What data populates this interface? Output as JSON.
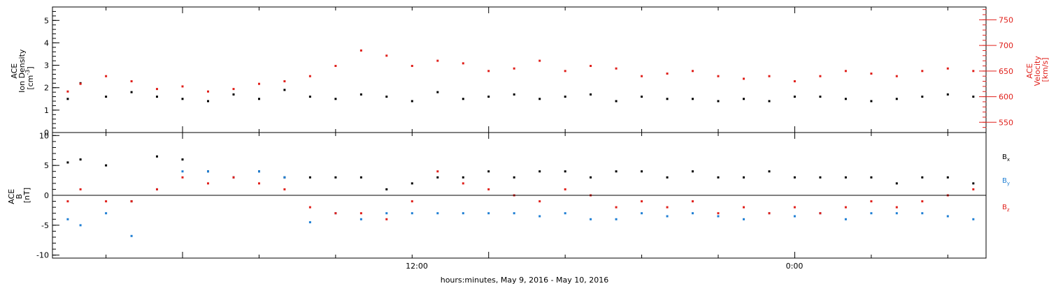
{
  "colors": {
    "black": "#000000",
    "red": "#e0201b",
    "blue": "#1f7fd4"
  },
  "x_axis": {
    "label": "hours:minutes, May  9, 2016 - May 10, 2016",
    "tick_labels": [
      "12:00",
      "0:00"
    ]
  },
  "chart_data": [
    {
      "type": "scatter",
      "title": "",
      "ylabel": "ACE\nIon Density\n[cm^-3]",
      "ylabel_lines": [
        "ACE",
        "Ion Density",
        "[cm",
        "-3",
        "]"
      ],
      "ylim": [
        0,
        5.6
      ],
      "yticks": [
        0,
        1,
        2,
        3,
        4,
        5
      ],
      "y2label": "ACE\nVelocity\n[km/s]",
      "y2label_lines": [
        "ACE",
        "Velocity",
        "[km/s]"
      ],
      "y2lim": [
        530,
        775
      ],
      "y2ticks": [
        550,
        600,
        650,
        700,
        750
      ],
      "xlim_hours": [
        -5.1,
        31.5
      ],
      "series": [
        {
          "name": "Ion Density",
          "axis": "left",
          "color": "black",
          "x": [
            -4.5,
            -4,
            -3,
            -2,
            -1,
            0,
            1,
            2,
            3,
            4,
            5,
            6,
            7,
            8,
            9,
            10,
            11,
            12,
            13,
            14,
            15,
            16,
            17,
            18,
            19,
            20,
            21,
            22,
            23,
            24,
            25,
            26,
            27,
            28,
            29,
            30,
            31
          ],
          "y": [
            1.5,
            2.2,
            1.6,
            1.8,
            1.6,
            1.5,
            1.4,
            1.7,
            1.5,
            1.9,
            1.6,
            1.5,
            1.7,
            1.6,
            1.4,
            1.8,
            1.5,
            1.6,
            1.7,
            1.5,
            1.6,
            1.7,
            1.4,
            1.6,
            1.5,
            1.5,
            1.4,
            1.5,
            1.4,
            1.6,
            1.6,
            1.5,
            1.4,
            1.5,
            1.6,
            1.7,
            1.6
          ]
        },
        {
          "name": "Velocity",
          "axis": "right",
          "color": "red",
          "x": [
            -4.5,
            -4,
            -3,
            -2,
            -1,
            0,
            1,
            2,
            3,
            4,
            5,
            6,
            7,
            8,
            9,
            10,
            11,
            12,
            13,
            14,
            15,
            16,
            17,
            18,
            19,
            20,
            21,
            22,
            23,
            24,
            25,
            26,
            27,
            28,
            29,
            30,
            31
          ],
          "y": [
            610,
            625,
            640,
            630,
            615,
            620,
            610,
            615,
            625,
            630,
            640,
            660,
            690,
            680,
            660,
            670,
            665,
            650,
            655,
            670,
            650,
            660,
            655,
            640,
            645,
            650,
            640,
            635,
            640,
            630,
            640,
            650,
            645,
            640,
            650,
            655,
            650
          ]
        }
      ]
    },
    {
      "type": "scatter",
      "title": "",
      "ylabel": "ACE\nB\n[nT]",
      "ylabel_lines": [
        "ACE",
        "B",
        "[nT]"
      ],
      "ylim": [
        -10.5,
        10.5
      ],
      "yticks": [
        -10,
        -5,
        0,
        5,
        10
      ],
      "xlim_hours": [
        -5.1,
        31.5
      ],
      "zero_line": true,
      "series": [
        {
          "name": "Bx",
          "base": "B",
          "sub": "x",
          "color": "black",
          "x": [
            -4.5,
            -4,
            -3,
            -2,
            -1,
            0,
            1,
            2,
            3,
            4,
            5,
            6,
            7,
            8,
            9,
            10,
            11,
            12,
            13,
            14,
            15,
            16,
            17,
            18,
            19,
            20,
            21,
            22,
            23,
            24,
            25,
            26,
            27,
            28,
            29,
            30,
            31
          ],
          "y": [
            5.5,
            6,
            5,
            -1,
            6.5,
            6,
            4,
            3,
            4,
            3,
            3,
            3,
            3,
            1,
            2,
            3,
            3,
            4,
            3,
            4,
            4,
            3,
            4,
            4,
            3,
            4,
            3,
            3,
            4,
            3,
            3,
            3,
            3,
            2,
            3,
            3,
            2
          ]
        },
        {
          "name": "By",
          "base": "B",
          "sub": "y",
          "color": "blue",
          "x": [
            -4.5,
            -4,
            -3,
            -2,
            -1,
            0,
            1,
            2,
            3,
            4,
            5,
            6,
            7,
            8,
            9,
            10,
            11,
            12,
            13,
            14,
            15,
            16,
            17,
            18,
            19,
            20,
            21,
            22,
            23,
            24,
            25,
            26,
            27,
            28,
            29,
            30,
            31
          ],
          "y": [
            -4,
            -5,
            -3,
            -6.8,
            1,
            4,
            4,
            3,
            4,
            3,
            -4.5,
            -3,
            -4,
            -3,
            -3,
            -3,
            -3,
            -3,
            -3,
            -3.5,
            -3,
            -4,
            -4,
            -3,
            -3.5,
            -3,
            -3.5,
            -4,
            -3,
            -3.5,
            -3,
            -4,
            -3,
            -3,
            -3,
            -3.5,
            -4
          ]
        },
        {
          "name": "Bz",
          "base": "B",
          "sub": "z",
          "color": "red",
          "x": [
            -4.5,
            -4,
            -3,
            -2,
            -1,
            0,
            1,
            2,
            3,
            4,
            5,
            6,
            7,
            8,
            9,
            10,
            11,
            12,
            13,
            14,
            15,
            16,
            17,
            18,
            19,
            20,
            21,
            22,
            23,
            24,
            25,
            26,
            27,
            28,
            29,
            30,
            31
          ],
          "y": [
            -1,
            1,
            -1,
            -1,
            1,
            3,
            2,
            3,
            2,
            1,
            -2,
            -3,
            -3,
            -4,
            -1,
            4,
            2,
            1,
            0,
            -1,
            1,
            0,
            -2,
            -1,
            -2,
            -1,
            -3,
            -2,
            -3,
            -2,
            -3,
            -2,
            -1,
            -2,
            -1,
            0,
            1
          ]
        }
      ]
    }
  ]
}
